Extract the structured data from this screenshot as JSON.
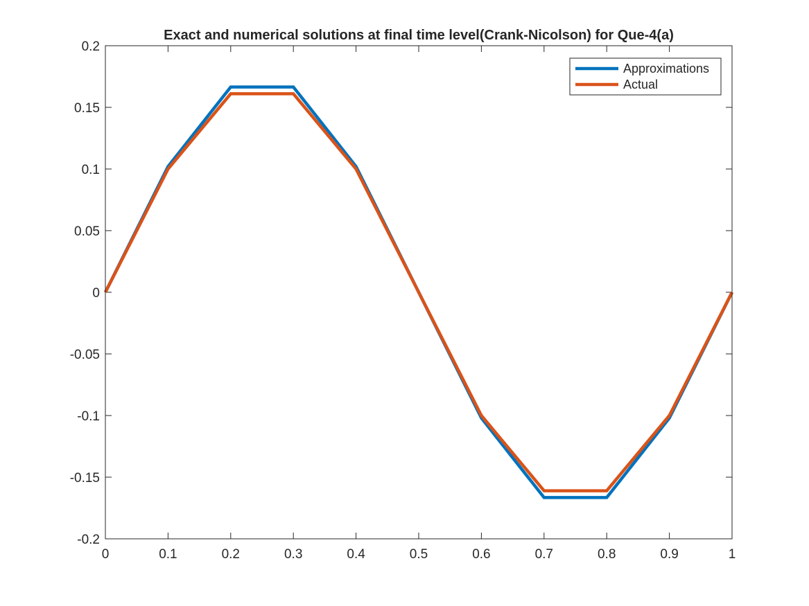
{
  "chart_data": {
    "type": "line",
    "title": "Exact and numerical solutions at final time level(Crank-Nicolson) for Que-4(a)",
    "xlabel": "",
    "ylabel": "",
    "xlim": [
      0,
      1
    ],
    "ylim": [
      -0.2,
      0.2
    ],
    "x_ticks": [
      0,
      0.1,
      0.2,
      0.3,
      0.4,
      0.5,
      0.6,
      0.7,
      0.8,
      0.9,
      1
    ],
    "x_tick_labels": [
      "0",
      "0.1",
      "0.2",
      "0.3",
      "0.4",
      "0.5",
      "0.6",
      "0.7",
      "0.8",
      "0.9",
      "1"
    ],
    "y_ticks": [
      -0.2,
      -0.15,
      -0.1,
      -0.05,
      0,
      0.05,
      0.1,
      0.15,
      0.2
    ],
    "y_tick_labels": [
      "-0.2",
      "-0.15",
      "-0.1",
      "-0.05",
      "0",
      "0.05",
      "0.1",
      "0.15",
      "0.2"
    ],
    "grid": false,
    "legend_position": "top-right",
    "x": [
      0,
      0.1,
      0.2,
      0.3,
      0.4,
      0.5,
      0.6,
      0.7,
      0.8,
      0.9,
      1
    ],
    "series": [
      {
        "name": "Approximations",
        "color": "#0072BD",
        "values": [
          0,
          0.102,
          0.1665,
          0.1665,
          0.102,
          0,
          -0.102,
          -0.1665,
          -0.1665,
          -0.102,
          0
        ]
      },
      {
        "name": "Actual",
        "color": "#D95319",
        "values": [
          0,
          0.1,
          0.161,
          0.161,
          0.1,
          0,
          -0.1,
          -0.161,
          -0.161,
          -0.1,
          0
        ]
      }
    ]
  }
}
